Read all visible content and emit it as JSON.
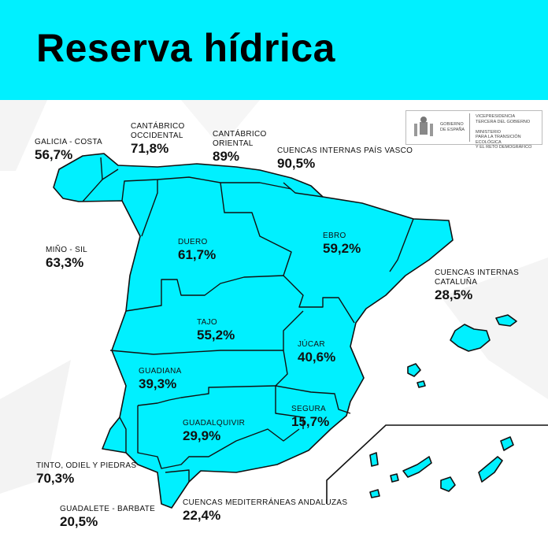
{
  "title": "Reserva hídrica",
  "colors": {
    "accent": "#00F0FF",
    "map_fill": "#00F0FF",
    "border": "#111111"
  },
  "logo": {
    "left": [
      "GOBIERNO",
      "DE ESPAÑA"
    ],
    "right": [
      "VICEPRESIDENCIA",
      "TERCERA DEL GOBIERNO",
      "MINISTERIO",
      "PARA LA TRANSICIÓN ECOLÓGICA",
      "Y EL RETO DEMOGRÁFICO"
    ]
  },
  "basins": [
    {
      "name": "GALICIA - COSTA",
      "value": "56,7%"
    },
    {
      "name": "CANTÁBRICO OCCIDENTAL",
      "value": "71,8%"
    },
    {
      "name": "CANTÁBRICO ORIENTAL",
      "value": "89%"
    },
    {
      "name": "CUENCAS INTERNAS PAÍS VASCO",
      "value": "90,5%"
    },
    {
      "name": "MIÑO - SIL",
      "value": "63,3%"
    },
    {
      "name": "DUERO",
      "value": "61,7%"
    },
    {
      "name": "EBRO",
      "value": "59,2%"
    },
    {
      "name": "CUENCAS INTERNAS CATALUÑA",
      "value": "28,5%"
    },
    {
      "name": "TAJO",
      "value": "55,2%"
    },
    {
      "name": "JÚCAR",
      "value": "40,6%"
    },
    {
      "name": "GUADIANA",
      "value": "39,3%"
    },
    {
      "name": "SEGURA",
      "value": "15,7%"
    },
    {
      "name": "GUADALQUIVIR",
      "value": "29,9%"
    },
    {
      "name": "TINTO, ODIEL Y PIEDRAS",
      "value": "70,3%"
    },
    {
      "name": "GUADALETE - BARBATE",
      "value": "20,5%"
    },
    {
      "name": "CUENCAS MEDITERRÁNEAS ANDALUZAS",
      "value": "22,4%"
    }
  ]
}
